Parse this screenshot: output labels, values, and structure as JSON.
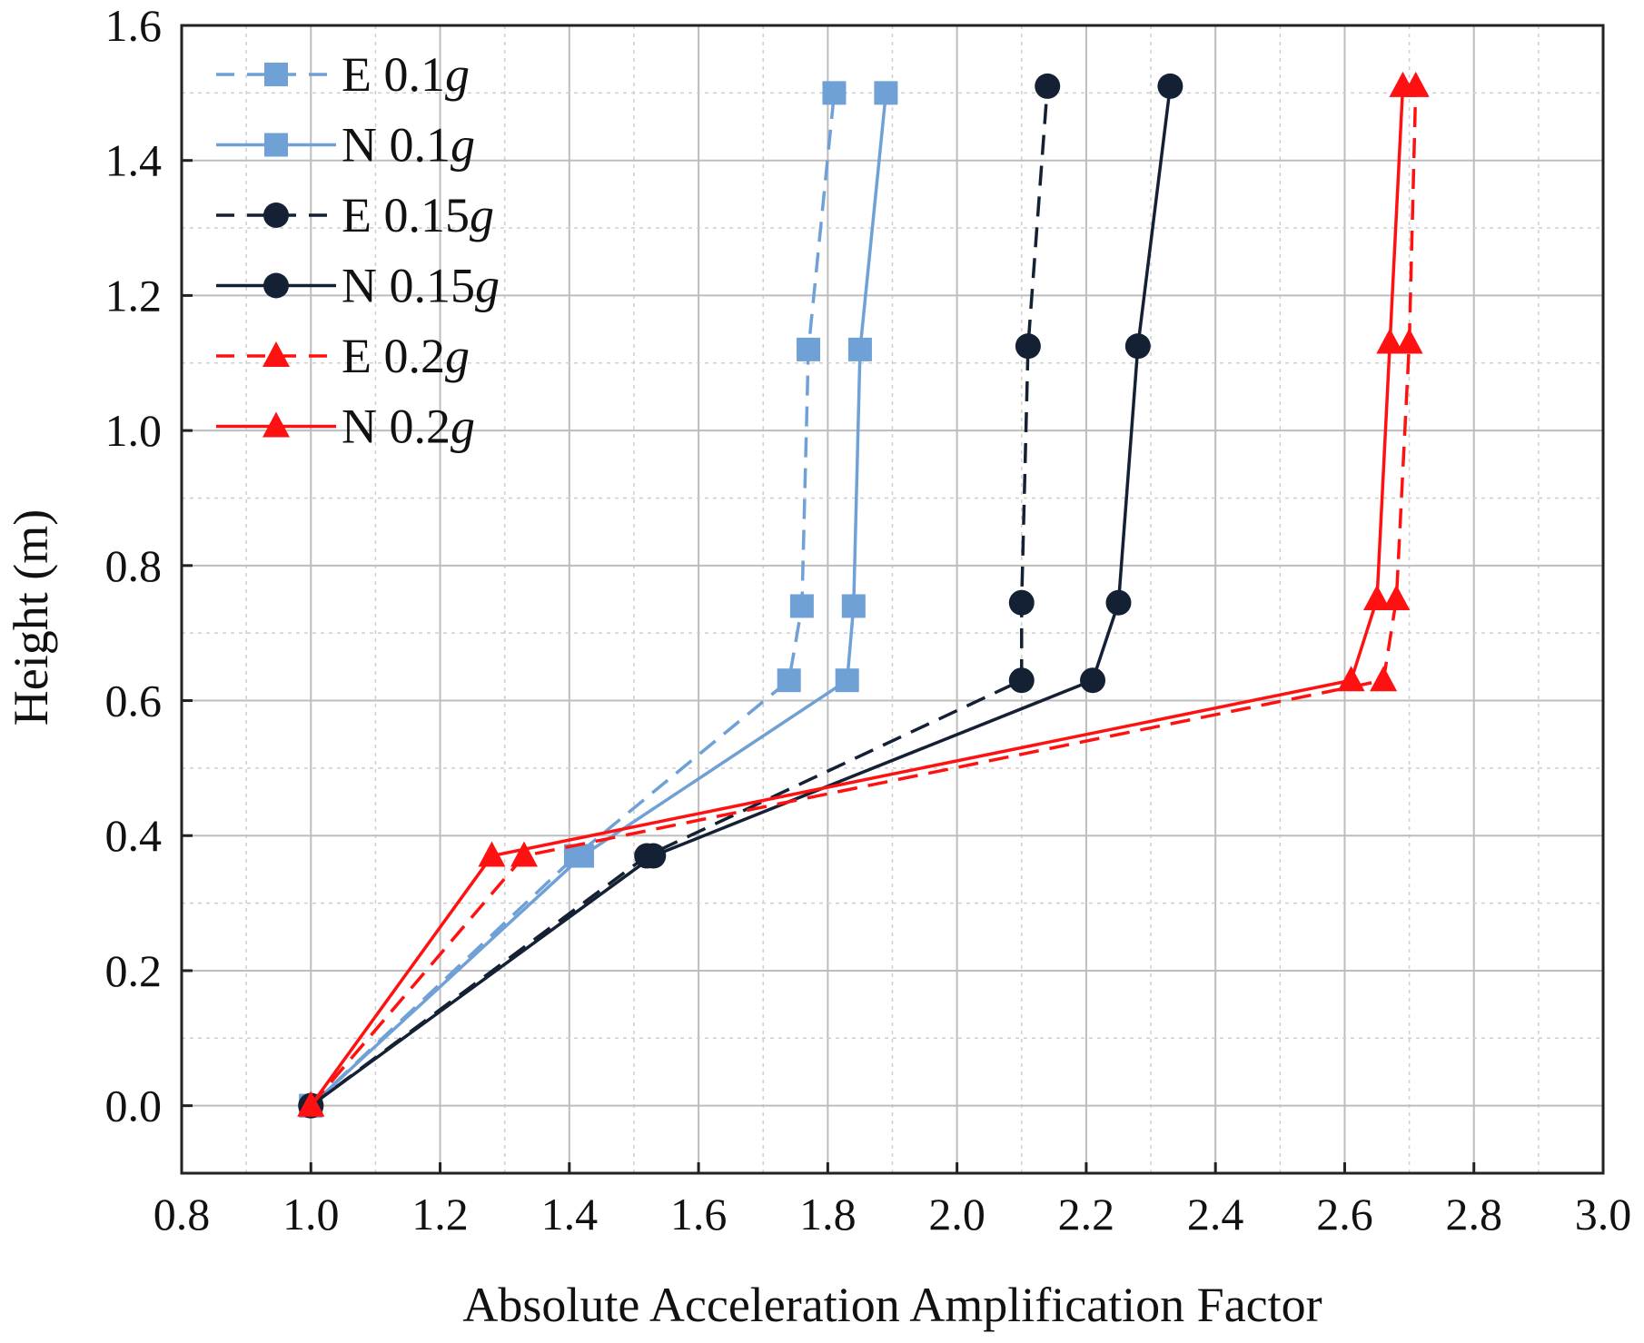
{
  "chart_data": {
    "type": "line",
    "title": "",
    "xlabel": "Absolute Acceleration Amplification Factor",
    "ylabel": "Height (m)",
    "xlim": [
      0.8,
      3.0
    ],
    "ylim": [
      -0.1,
      1.6
    ],
    "xticks": [
      "0.8",
      "1.0",
      "1.2",
      "1.4",
      "1.6",
      "1.8",
      "2.0",
      "2.2",
      "2.4",
      "2.6",
      "2.8",
      "3.0"
    ],
    "yticks": [
      "0.0",
      "0.2",
      "0.4",
      "0.6",
      "0.8",
      "1.0",
      "1.2",
      "1.4",
      "1.6"
    ],
    "grid": true,
    "legend_position": "top-left",
    "series": [
      {
        "name_prefix": "E",
        "name_value": "0.1",
        "name_unit": "g",
        "color": "#6fa0d6",
        "dash": "dashed",
        "marker": "square",
        "x": [
          1.0,
          1.41,
          1.74,
          1.76,
          1.77,
          1.81
        ],
        "y": [
          0.0,
          0.37,
          0.63,
          0.74,
          1.12,
          1.5
        ]
      },
      {
        "name_prefix": "N",
        "name_value": "0.1",
        "name_unit": "g",
        "color": "#6fa0d6",
        "dash": "solid",
        "marker": "square",
        "x": [
          1.0,
          1.42,
          1.83,
          1.84,
          1.85,
          1.89
        ],
        "y": [
          0.0,
          0.37,
          0.63,
          0.74,
          1.12,
          1.5
        ]
      },
      {
        "name_prefix": "E",
        "name_value": "0.15",
        "name_unit": "g",
        "color": "#142033",
        "dash": "dashed",
        "marker": "circle",
        "x": [
          1.0,
          1.52,
          2.1,
          2.1,
          2.11,
          2.14
        ],
        "y": [
          0.0,
          0.37,
          0.63,
          0.745,
          1.125,
          1.51
        ]
      },
      {
        "name_prefix": "N",
        "name_value": "0.15",
        "name_unit": "g",
        "color": "#142033",
        "dash": "solid",
        "marker": "circle",
        "x": [
          1.0,
          1.53,
          2.21,
          2.25,
          2.28,
          2.33
        ],
        "y": [
          0.0,
          0.37,
          0.63,
          0.745,
          1.125,
          1.51
        ]
      },
      {
        "name_prefix": "E",
        "name_value": "0.2",
        "name_unit": "g",
        "color": "#ff1111",
        "dash": "dashed",
        "marker": "triangle",
        "x": [
          1.0,
          1.33,
          2.66,
          2.68,
          2.7,
          2.71
        ],
        "y": [
          0.0,
          0.37,
          0.63,
          0.75,
          1.13,
          1.51
        ]
      },
      {
        "name_prefix": "N",
        "name_value": "0.2",
        "name_unit": "g",
        "color": "#ff1111",
        "dash": "solid",
        "marker": "triangle",
        "x": [
          1.0,
          1.28,
          2.61,
          2.65,
          2.67,
          2.69
        ],
        "y": [
          0.0,
          0.37,
          0.63,
          0.75,
          1.13,
          1.51
        ]
      }
    ]
  }
}
